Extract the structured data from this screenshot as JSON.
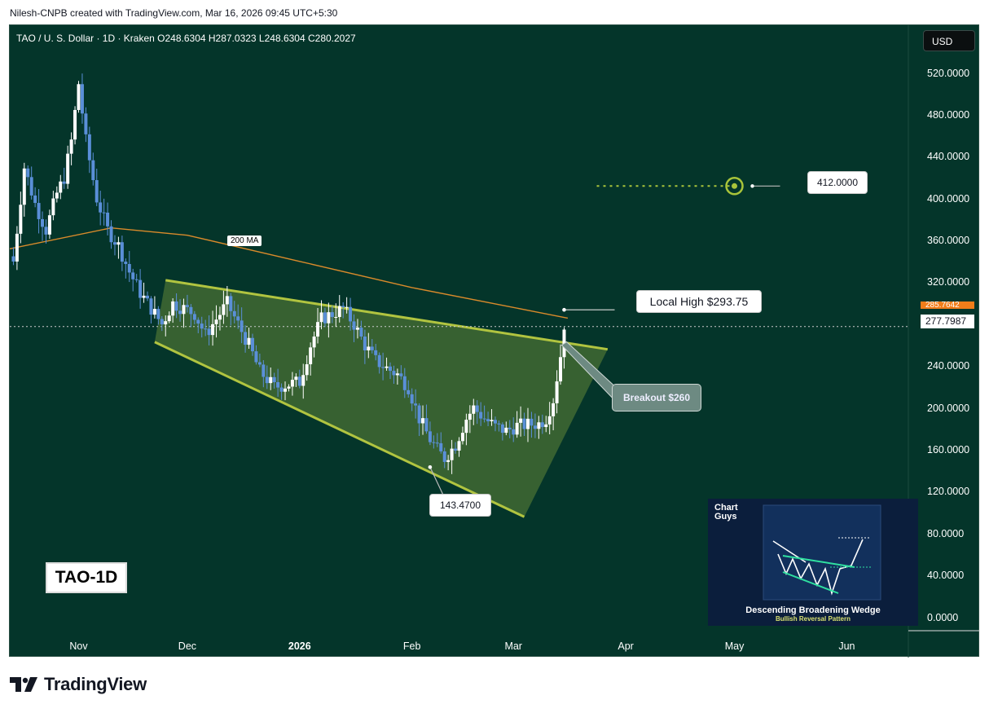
{
  "header": {
    "credit": "Nilesh-CNPB created with TradingView.com, Mar 16, 2026 09:45 UTC+5:30"
  },
  "symbol_line": "TAO / U. S. Dollar · 1D · Kraken   O248.6304   H287.0323   L248.6304   C280.2027",
  "currency_button": "USD",
  "chart_data": {
    "type": "candlestick",
    "title": "TAO / U. S. Dollar · 1D · Kraken",
    "ohlc_last": {
      "open": 248.6304,
      "high": 287.0323,
      "low": 248.6304,
      "close": 280.2027
    },
    "y_ticks": [
      "520.0000",
      "480.0000",
      "440.0000",
      "400.0000",
      "360.0000",
      "320.0000",
      "240.0000",
      "200.0000",
      "160.0000",
      "120.0000",
      "80.0000",
      "40.0000",
      "0.0000"
    ],
    "y_tick_values": [
      520,
      480,
      440,
      400,
      360,
      320,
      240,
      200,
      160,
      120,
      80,
      40,
      0
    ],
    "ylim": [
      -12,
      550
    ],
    "x_ticks": [
      {
        "label": "Nov",
        "date": "2025-11-01",
        "bold": false
      },
      {
        "label": "Dec",
        "date": "2025-12-01",
        "bold": false
      },
      {
        "label": "2026",
        "date": "2026-01-01",
        "bold": true
      },
      {
        "label": "Feb",
        "date": "2026-02-01",
        "bold": false
      },
      {
        "label": "Mar",
        "date": "2026-03-01",
        "bold": false
      },
      {
        "label": "Apr",
        "date": "2026-04-01",
        "bold": false
      },
      {
        "label": "May",
        "date": "2026-05-01",
        "bold": false
      },
      {
        "label": "Jun",
        "date": "2026-06-01",
        "bold": false
      }
    ],
    "xlim": [
      "2025-10-13",
      "2026-06-18"
    ],
    "price_path": [
      [
        "2025-10-14",
        340
      ],
      [
        "2025-10-17",
        430
      ],
      [
        "2025-10-20",
        395
      ],
      [
        "2025-10-23",
        370
      ],
      [
        "2025-10-26",
        405
      ],
      [
        "2025-10-28",
        420
      ],
      [
        "2025-10-30",
        455
      ],
      [
        "2025-11-01",
        510
      ],
      [
        "2025-11-03",
        455
      ],
      [
        "2025-11-06",
        400
      ],
      [
        "2025-11-09",
        370
      ],
      [
        "2025-11-12",
        355
      ],
      [
        "2025-11-15",
        330
      ],
      [
        "2025-11-18",
        310
      ],
      [
        "2025-11-21",
        295
      ],
      [
        "2025-11-24",
        280
      ],
      [
        "2025-11-27",
        300
      ],
      [
        "2025-11-30",
        295
      ],
      [
        "2025-12-03",
        290
      ],
      [
        "2025-12-06",
        270
      ],
      [
        "2025-12-09",
        285
      ],
      [
        "2025-12-12",
        300
      ],
      [
        "2025-12-15",
        280
      ],
      [
        "2025-12-18",
        260
      ],
      [
        "2025-12-21",
        235
      ],
      [
        "2025-12-25",
        220
      ],
      [
        "2025-12-28",
        222
      ],
      [
        "2026-01-01",
        225
      ],
      [
        "2026-01-04",
        260
      ],
      [
        "2026-01-07",
        285
      ],
      [
        "2026-01-10",
        290
      ],
      [
        "2026-01-13",
        295
      ],
      [
        "2026-01-16",
        280
      ],
      [
        "2026-01-19",
        260
      ],
      [
        "2026-01-22",
        245
      ],
      [
        "2026-01-25",
        238
      ],
      [
        "2026-01-28",
        232
      ],
      [
        "2026-01-31",
        220
      ],
      [
        "2026-02-03",
        190
      ],
      [
        "2026-02-06",
        170
      ],
      [
        "2026-02-08",
        160
      ],
      [
        "2026-02-10",
        152
      ],
      [
        "2026-02-13",
        165
      ],
      [
        "2026-02-16",
        190
      ],
      [
        "2026-02-18",
        200
      ],
      [
        "2026-02-21",
        190
      ],
      [
        "2026-02-24",
        182
      ],
      [
        "2026-02-27",
        178
      ],
      [
        "2026-03-02",
        183
      ],
      [
        "2026-03-05",
        184
      ],
      [
        "2026-03-08",
        185
      ],
      [
        "2026-03-10",
        190
      ],
      [
        "2026-03-12",
        208
      ],
      [
        "2026-03-14",
        250
      ],
      [
        "2026-03-15",
        280
      ]
    ],
    "ma200": {
      "label": "200 MA",
      "points": [
        [
          "2025-10-13",
          352
        ],
        [
          "2025-11-10",
          372
        ],
        [
          "2025-12-01",
          365
        ],
        [
          "2026-01-01",
          340
        ],
        [
          "2026-02-01",
          315
        ],
        [
          "2026-03-01",
          296
        ],
        [
          "2026-03-16",
          285.7642
        ]
      ]
    },
    "wedge": {
      "upper": [
        [
          "2025-11-25",
          322
        ],
        [
          "2026-03-27",
          256
        ]
      ],
      "lower": [
        [
          "2025-11-22",
          263
        ],
        [
          "2026-03-04",
          96
        ]
      ],
      "fill_right": [
        [
          "2026-03-27",
          256
        ],
        [
          "2026-03-04",
          96
        ]
      ]
    },
    "target_line": {
      "from": "2026-03-24",
      "to": "2026-05-01",
      "value": 412
    },
    "price_tags": {
      "ma": "285.7642",
      "last": "277.7987",
      "last_value": 277.7987
    },
    "annotations": {
      "local_high": {
        "text": "Local High $293.75",
        "date": "2026-03-15",
        "value": 293.75
      },
      "breakout": {
        "text": "Breakout $260",
        "date": "2026-03-15",
        "value": 260
      },
      "low": {
        "text": "143.4700",
        "date": "2026-02-06",
        "value": 143.47
      },
      "target": {
        "text": "412.0000",
        "value": 412
      }
    }
  },
  "tao_label": "TAO-1D",
  "inset": {
    "logo_line1": "Chart",
    "logo_line2": "Guys",
    "title": "Descending Broadening Wedge",
    "subtitle": "Bullish Reversal Pattern"
  },
  "brand": "TradingView",
  "colors": {
    "background": "#04352a",
    "bull": "#ffffff",
    "bear": "#5a8fd8",
    "wedge": "#b1c440",
    "ma": "#d98a2b",
    "target": "#a9c43a"
  }
}
